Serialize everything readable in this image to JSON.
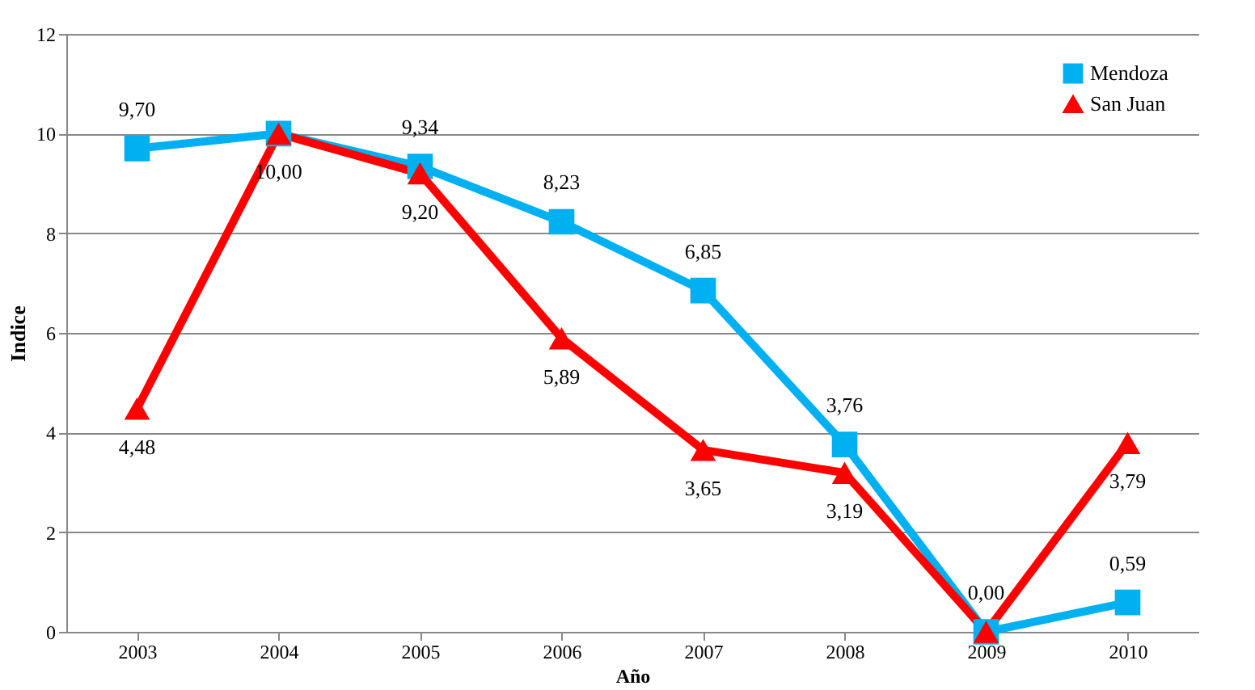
{
  "chart_data": {
    "type": "line",
    "xlabel": "Año",
    "ylabel": "Indice",
    "categories": [
      "2003",
      "2004",
      "2005",
      "2006",
      "2007",
      "2008",
      "2009",
      "2010"
    ],
    "ylim": [
      0,
      12
    ],
    "yticks": [
      0,
      2,
      4,
      6,
      8,
      10,
      12
    ],
    "grid": "y",
    "legend": "top right",
    "line_style": "solid",
    "series": [
      {
        "name": "Mendoza",
        "color": "#00b0f0",
        "marker": "square",
        "values": [
          9.7,
          10.0,
          9.34,
          8.23,
          6.85,
          3.76,
          0.0,
          0.59
        ],
        "value_labels": [
          "9,70",
          null,
          "9,34",
          "8,23",
          "6,85",
          "3,76",
          "0,00",
          "0,59"
        ]
      },
      {
        "name": "San Juan",
        "color": "#ff0000",
        "marker": "triangle",
        "values": [
          4.48,
          10.0,
          9.2,
          5.89,
          3.65,
          3.19,
          0.0,
          3.79
        ],
        "value_labels": [
          "4,48",
          "10,00",
          "9,20",
          "5,89",
          "3,65",
          "3,19",
          null,
          "3,79"
        ]
      }
    ]
  }
}
